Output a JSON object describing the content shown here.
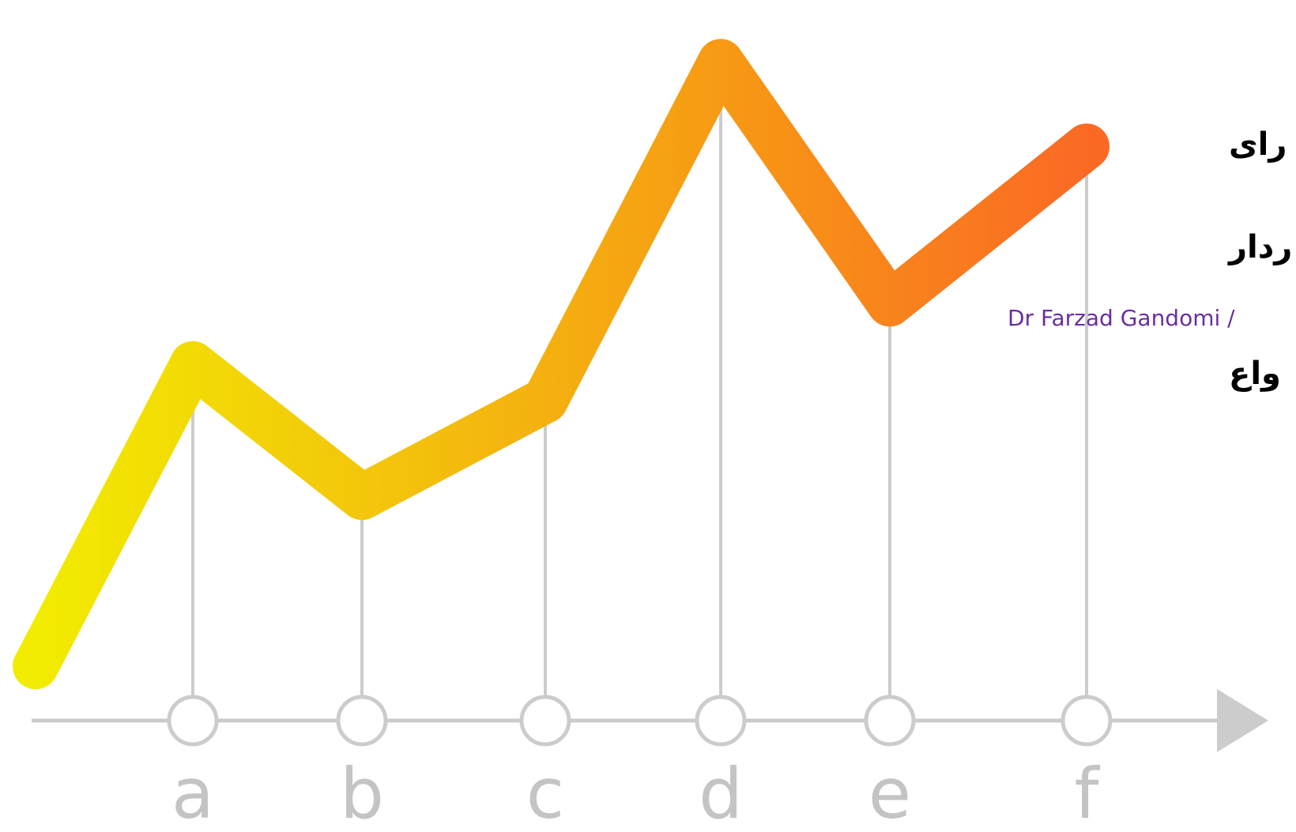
{
  "chart_data": {
    "type": "line",
    "categories": [
      "a",
      "b",
      "c",
      "d",
      "e",
      "f"
    ],
    "series": [
      {
        "values": [
          5.0,
          2.8,
          4.4,
          10.0,
          6.0,
          8.6
        ]
      }
    ],
    "start_value": 0.0,
    "ylim": [
      -1.5,
      10.5
    ],
    "gradient_colors": [
      "#f2ec00",
      "#f3c20c",
      "#f79a14",
      "#fa6a25"
    ],
    "axis_color": "#cccccc",
    "grid": false
  },
  "overlay": {
    "line1": "رای",
    "line2": "ردار",
    "line3": "واع",
    "credit": "Dr Farzad Gandomi /"
  }
}
